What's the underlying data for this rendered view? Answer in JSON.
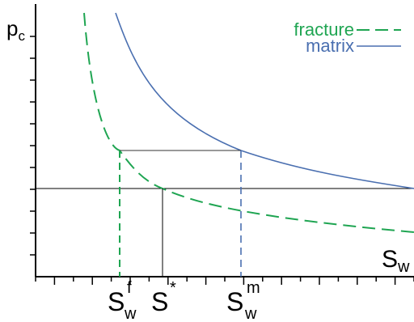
{
  "axes": {
    "y_label": "p",
    "y_label_sub": "c",
    "x_label": "S",
    "x_label_sub": "w"
  },
  "legend": {
    "fracture": "fracture",
    "matrix": "matrix"
  },
  "markers": {
    "s_w_f": {
      "main": "S",
      "sup": "f",
      "sub": "w"
    },
    "s_star": {
      "main": "S",
      "sup": "*"
    },
    "s_w_m": {
      "main": "S",
      "sup": "m",
      "sub": "w"
    }
  },
  "colors": {
    "fracture": "#1fa552",
    "matrix": "#4a6fb0",
    "axis": "#000000",
    "guide": "#333333"
  },
  "curves": {
    "fracture_style": "dashed",
    "matrix_style": "solid"
  }
}
